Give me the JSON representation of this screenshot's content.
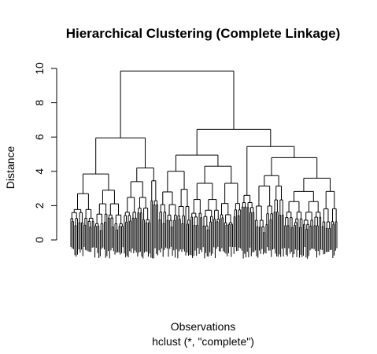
{
  "chart_data": {
    "type": "dendrogram",
    "title": "Hierarchical Clustering (Complete Linkage)",
    "ylabel": "Distance",
    "xlabel": "Observations",
    "sublabel": "hclust (*, \"complete\")",
    "ylim": [
      0,
      10
    ],
    "yticks": [
      "0",
      "2",
      "4",
      "6",
      "8",
      "10"
    ],
    "top_merges": [
      {
        "left": 1.0,
        "right": 6.2,
        "height": 9.85
      },
      {
        "left": 0.55,
        "right": 1.55,
        "height": 5.95
      },
      {
        "left": 3.85,
        "right": 5.85,
        "height": 6.45
      },
      {
        "left": 0.25,
        "right": 0.75,
        "height": 3.85
      },
      {
        "left": 1.35,
        "right": 1.8,
        "height": 4.2
      },
      {
        "left": 2.65,
        "right": 4.5,
        "height": 4.95
      },
      {
        "left": 5.55,
        "right": 6.05,
        "height": 5.45
      }
    ],
    "leaf_count": 200,
    "stroke_color": "#000000"
  }
}
